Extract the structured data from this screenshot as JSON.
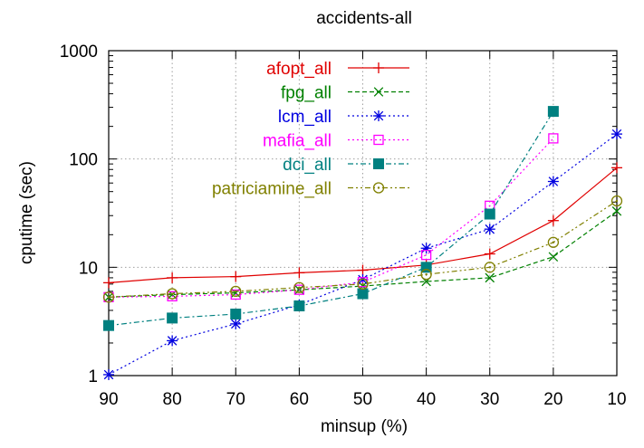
{
  "chart_data": {
    "type": "line",
    "title": "accidents-all",
    "xlabel": "minsup (%)",
    "ylabel": "cputime (sec)",
    "x": [
      90,
      80,
      70,
      60,
      50,
      40,
      30,
      20,
      10
    ],
    "x_ticks": [
      "90",
      "80",
      "70",
      "60",
      "50",
      "40",
      "30",
      "20",
      "10"
    ],
    "x_reversed": true,
    "y_scale": "log",
    "ylim": [
      1,
      1000
    ],
    "y_ticks": [
      {
        "value": 1,
        "label": "1"
      },
      {
        "value": 10,
        "label": "10"
      },
      {
        "value": 100,
        "label": "100"
      },
      {
        "value": 1000,
        "label": "1000"
      }
    ],
    "grid": true,
    "legend_position": "top-left",
    "series": [
      {
        "name": "afopt_all",
        "color": "#e00000",
        "marker": "plus",
        "dash": "solid",
        "values": [
          7.2,
          8.0,
          8.2,
          8.9,
          9.4,
          10.5,
          13.3,
          27.0,
          83.0
        ]
      },
      {
        "name": "fpg_all",
        "color": "#008000",
        "marker": "x",
        "dash": "dashed",
        "values": [
          5.3,
          5.6,
          5.8,
          6.2,
          6.7,
          7.4,
          8.0,
          12.5,
          33.0
        ]
      },
      {
        "name": "lcm_all",
        "color": "#0000e0",
        "marker": "asterisk",
        "dash": "dotted",
        "values": [
          1.02,
          2.1,
          3.0,
          4.5,
          7.7,
          15.0,
          22.5,
          62.0,
          170.0
        ]
      },
      {
        "name": "mafia_all",
        "color": "#ff00ff",
        "marker": "square-open",
        "dash": "dotted",
        "values": [
          5.3,
          5.4,
          5.6,
          6.2,
          7.3,
          13.0,
          37.0,
          155.0,
          null
        ]
      },
      {
        "name": "dci_all",
        "color": "#008080",
        "marker": "square-filled",
        "dash": "dashdot",
        "values": [
          2.9,
          3.4,
          3.7,
          4.4,
          5.7,
          10.0,
          31.0,
          275.0,
          null
        ]
      },
      {
        "name": "patriciamine_all",
        "color": "#808000",
        "marker": "circle-open",
        "dash": "dashdotdot",
        "values": [
          5.3,
          5.7,
          6.0,
          6.5,
          7.0,
          8.6,
          10.0,
          17.0,
          41.0
        ]
      }
    ]
  }
}
